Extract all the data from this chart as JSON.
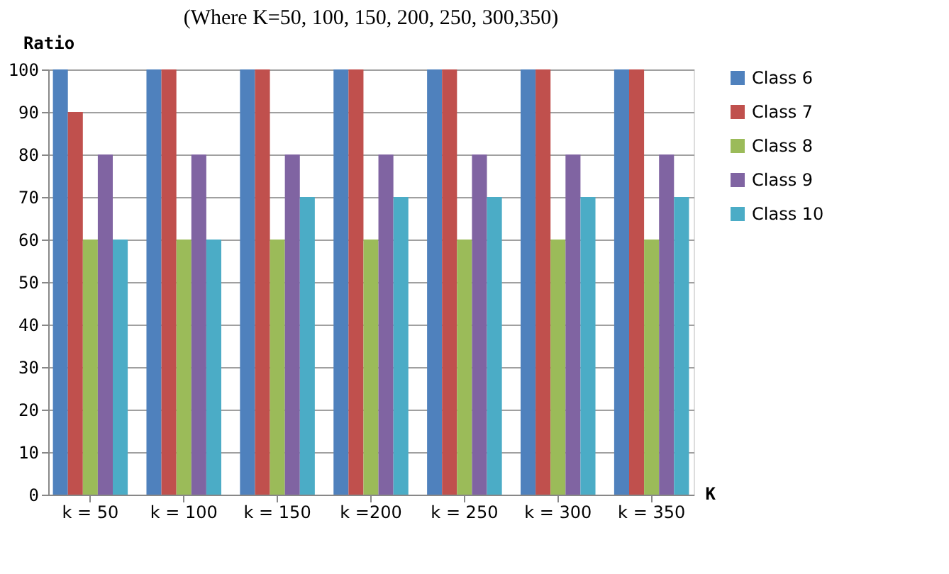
{
  "chart_data": {
    "type": "bar",
    "title": "(Where K=50, 100, 150, 200, 250, 300,350)",
    "ylabel": "Ratio",
    "xlabel": "K",
    "categories": [
      "k = 50",
      "k = 100",
      "k = 150",
      "k =200",
      "k = 250",
      "k = 300",
      "k = 350"
    ],
    "series": [
      {
        "name": "Class 6",
        "color": "#4f81bd",
        "values": [
          100,
          100,
          100,
          100,
          100,
          100,
          100
        ]
      },
      {
        "name": "Class 7",
        "color": "#c0504d",
        "values": [
          90,
          100,
          100,
          100,
          100,
          100,
          100
        ]
      },
      {
        "name": "Class 8",
        "color": "#9bbb59",
        "values": [
          60,
          60,
          60,
          60,
          60,
          60,
          60
        ]
      },
      {
        "name": "Class 9",
        "color": "#8064a2",
        "values": [
          80,
          80,
          80,
          80,
          80,
          80,
          80
        ]
      },
      {
        "name": "Class 10",
        "color": "#4bacc6",
        "values": [
          60,
          60,
          70,
          70,
          70,
          70,
          70
        ]
      }
    ],
    "ylim": [
      0,
      100
    ],
    "yticks": [
      0,
      10,
      20,
      30,
      40,
      50,
      60,
      70,
      80,
      90,
      100
    ],
    "grid": "y",
    "legend": "right"
  }
}
